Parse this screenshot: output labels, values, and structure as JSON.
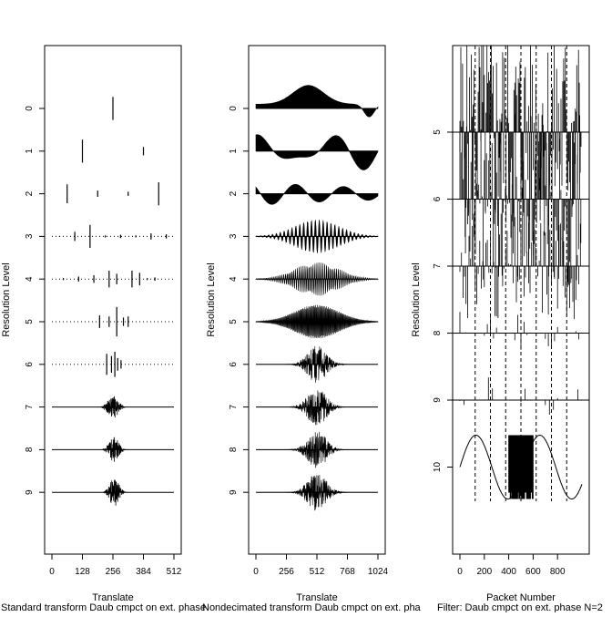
{
  "chart_data": [
    {
      "type": "wavelet-coefficient-plot",
      "xlabel": "Translate",
      "ylabel": "Resolution Level",
      "xlim": [
        0,
        512
      ],
      "xticks": [
        "0",
        "128",
        "256",
        "384",
        "512"
      ],
      "levels": [
        "0",
        "1",
        "2",
        "3",
        "4",
        "5",
        "6",
        "7",
        "8",
        "9"
      ],
      "caption": "Standard transform Daub cmpct on ext. phase",
      "coefficients": {
        "0": [
          [
            256,
            0.55
          ]
        ],
        "1": [
          [
            128,
            0.55
          ],
          [
            384,
            0.2
          ]
        ],
        "2": [
          [
            64,
            0.45
          ],
          [
            192,
            0.15
          ],
          [
            320,
            0.1
          ],
          [
            448,
            0.55
          ]
        ],
        "3": [
          [
            32,
            0.02
          ],
          [
            96,
            0.22
          ],
          [
            160,
            0.55
          ],
          [
            224,
            0.05
          ],
          [
            288,
            0.08
          ],
          [
            352,
            0.05
          ],
          [
            416,
            0.15
          ],
          [
            480,
            0.1
          ]
        ],
        "4": [
          [
            48,
            0.05
          ],
          [
            112,
            0.12
          ],
          [
            176,
            0.18
          ],
          [
            240,
            0.4
          ],
          [
            272,
            0.25
          ],
          [
            336,
            0.4
          ],
          [
            368,
            0.3
          ],
          [
            400,
            0.05
          ],
          [
            432,
            0.08
          ]
        ],
        "5": [
          [
            200,
            0.3
          ],
          [
            240,
            0.25
          ],
          [
            272,
            0.7
          ],
          [
            300,
            0.2
          ],
          [
            320,
            0.25
          ]
        ],
        "6": [
          [
            230,
            0.5
          ],
          [
            250,
            0.4
          ],
          [
            264,
            0.6
          ],
          [
            276,
            0.3
          ],
          [
            290,
            0.2
          ]
        ]
      },
      "bursts": {
        "7": {
          "center": 256,
          "spread": 30,
          "amp": 0.55
        },
        "8": {
          "center": 260,
          "spread": 28,
          "amp": 0.6
        },
        "9": {
          "center": 262,
          "spread": 26,
          "amp": 0.7
        }
      }
    },
    {
      "type": "wavelet-coefficient-plot",
      "xlabel": "Translate",
      "ylabel": "Resolution Level",
      "xlim": [
        0,
        1024
      ],
      "xticks": [
        "0",
        "256",
        "512",
        "768",
        "1024"
      ],
      "levels": [
        "0",
        "1",
        "2",
        "3",
        "4",
        "5",
        "6",
        "7",
        "8",
        "9"
      ],
      "caption": "Nondecimated transform Daub cmpct on ext. pha"
    },
    {
      "type": "wavelet-packet-plot",
      "xlabel": "Packet Number",
      "ylabel": "Resolution Level",
      "xlim": [
        0,
        1000
      ],
      "xticks": [
        "0",
        "200",
        "400",
        "600",
        "800"
      ],
      "levels": [
        "5",
        "6",
        "7",
        "8",
        "9",
        "10"
      ],
      "caption": "Filter:  Daub cmpct on ext. phase N=2"
    }
  ]
}
